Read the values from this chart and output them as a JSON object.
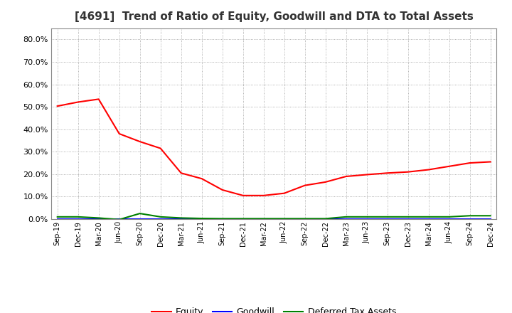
{
  "title": "[4691]  Trend of Ratio of Equity, Goodwill and DTA to Total Assets",
  "labels": [
    "Sep-19",
    "Dec-19",
    "Mar-20",
    "Jun-20",
    "Sep-20",
    "Dec-20",
    "Mar-21",
    "Jun-21",
    "Sep-21",
    "Dec-21",
    "Mar-22",
    "Jun-22",
    "Sep-22",
    "Dec-22",
    "Mar-23",
    "Jun-23",
    "Sep-23",
    "Dec-23",
    "Mar-24",
    "Jun-24",
    "Sep-24",
    "Dec-24"
  ],
  "equity": [
    0.503,
    0.521,
    0.534,
    0.38,
    0.345,
    0.315,
    0.205,
    0.18,
    0.13,
    0.105,
    0.105,
    0.115,
    0.15,
    0.165,
    0.19,
    0.198,
    0.205,
    0.21,
    0.22,
    0.235,
    0.25,
    0.255
  ],
  "goodwill": [
    0.0,
    0.0,
    0.0,
    0.0,
    0.0,
    0.0,
    0.0,
    0.0,
    0.0,
    0.0,
    0.0,
    0.0,
    0.0,
    0.0,
    0.0,
    0.0,
    0.0,
    0.0,
    0.0,
    0.0,
    0.0,
    0.0
  ],
  "dta": [
    0.01,
    0.01,
    0.005,
    -0.002,
    0.025,
    0.01,
    0.005,
    0.003,
    0.002,
    0.002,
    0.002,
    0.002,
    0.002,
    0.002,
    0.01,
    0.01,
    0.01,
    0.01,
    0.01,
    0.01,
    0.015,
    0.015
  ],
  "equity_color": "#FF0000",
  "goodwill_color": "#0000FF",
  "dta_color": "#008000",
  "ylim": [
    0.0,
    0.85
  ],
  "yticks": [
    0.0,
    0.1,
    0.2,
    0.3,
    0.4,
    0.5,
    0.6,
    0.7,
    0.8
  ],
  "background_color": "#FFFFFF",
  "grid_color": "#AAAAAA",
  "title_fontsize": 11,
  "legend_labels": [
    "Equity",
    "Goodwill",
    "Deferred Tax Assets"
  ]
}
